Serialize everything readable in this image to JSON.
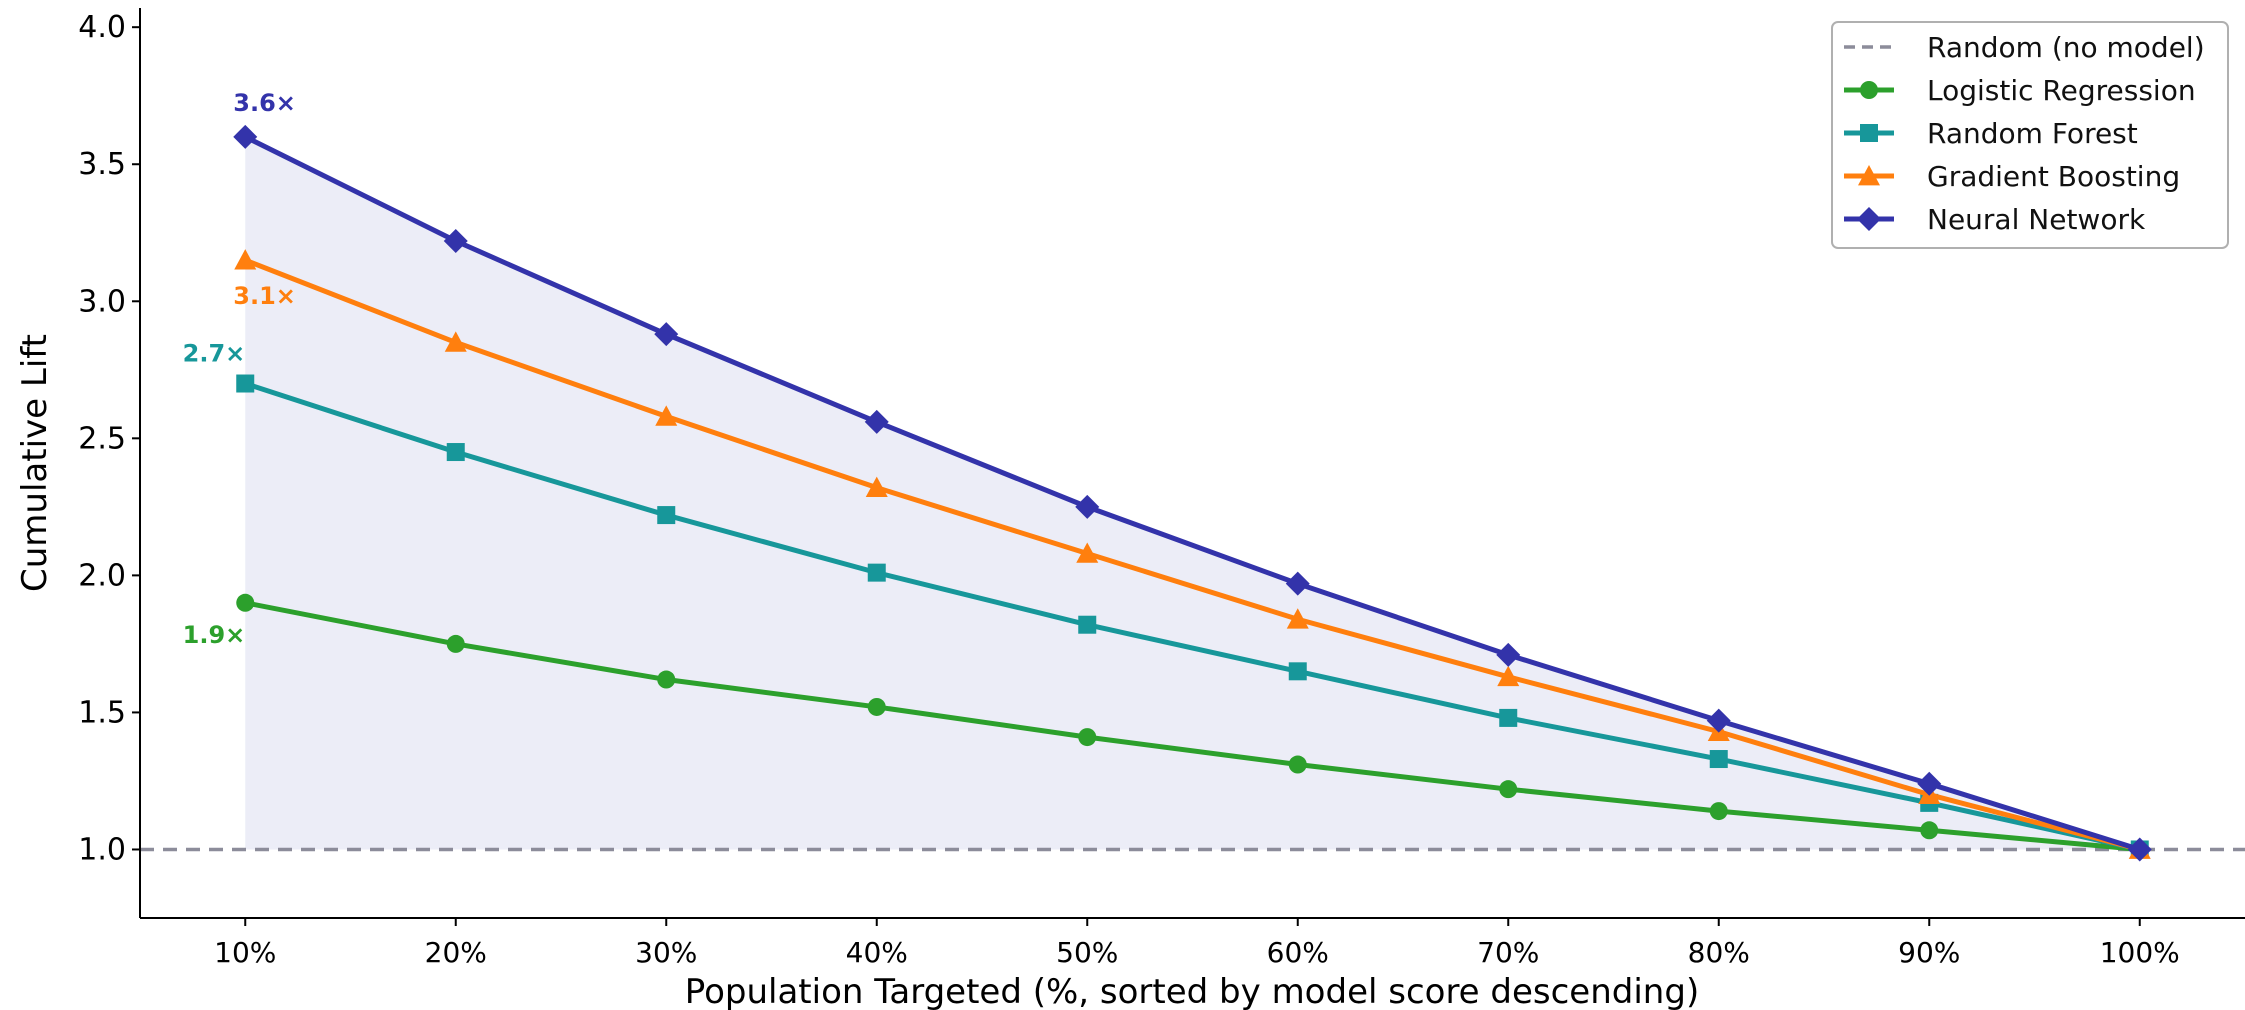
{
  "chart_data": {
    "type": "line",
    "title": "",
    "xlabel": "Population Targeted (%, sorted by model score descending)",
    "ylabel": "Cumulative Lift",
    "x": [
      10,
      20,
      30,
      40,
      50,
      60,
      70,
      80,
      90,
      100
    ],
    "x_tick_labels": [
      "10%",
      "20%",
      "30%",
      "40%",
      "50%",
      "60%",
      "70%",
      "80%",
      "90%",
      "100%"
    ],
    "y_ticks": [
      "1.0",
      "1.5",
      "2.0",
      "2.5",
      "3.0",
      "3.5",
      "4.0"
    ],
    "xlim": [
      5,
      105
    ],
    "ylim": [
      0.75,
      4.07
    ],
    "grid": false,
    "legend_position": "top-right",
    "baseline": {
      "name": "Random (no model)",
      "value": 1.0,
      "color": "#8c8c9a",
      "style": "dashed"
    },
    "shaded_region": {
      "between": [
        "Random (no model)",
        "Neural Network"
      ],
      "color": "#e9eaf6"
    },
    "series": [
      {
        "name": "Logistic Regression",
        "color": "#2ca02c",
        "marker": "circle",
        "values": [
          1.9,
          1.75,
          1.62,
          1.52,
          1.41,
          1.31,
          1.22,
          1.14,
          1.07,
          1.0
        ]
      },
      {
        "name": "Random Forest",
        "color": "#17979a",
        "marker": "square",
        "values": [
          2.7,
          2.45,
          2.22,
          2.01,
          1.82,
          1.65,
          1.48,
          1.33,
          1.17,
          1.0
        ]
      },
      {
        "name": "Gradient Boosting",
        "color": "#ff7f0e",
        "marker": "triangle",
        "values": [
          3.15,
          2.85,
          2.58,
          2.32,
          2.08,
          1.84,
          1.63,
          1.43,
          1.2,
          1.0
        ]
      },
      {
        "name": "Neural Network",
        "color": "#3333aa",
        "marker": "diamond",
        "values": [
          3.6,
          3.22,
          2.88,
          2.56,
          2.25,
          1.97,
          1.71,
          1.47,
          1.24,
          1.0
        ]
      }
    ],
    "annotations": [
      {
        "series": "Neural Network",
        "text": "3.6×",
        "placement": "above-right"
      },
      {
        "series": "Gradient Boosting",
        "text": "3.1×",
        "placement": "below-right"
      },
      {
        "series": "Random Forest",
        "text": "2.7×",
        "placement": "above-left"
      },
      {
        "series": "Logistic Regression",
        "text": "1.9×",
        "placement": "below-left"
      }
    ]
  }
}
